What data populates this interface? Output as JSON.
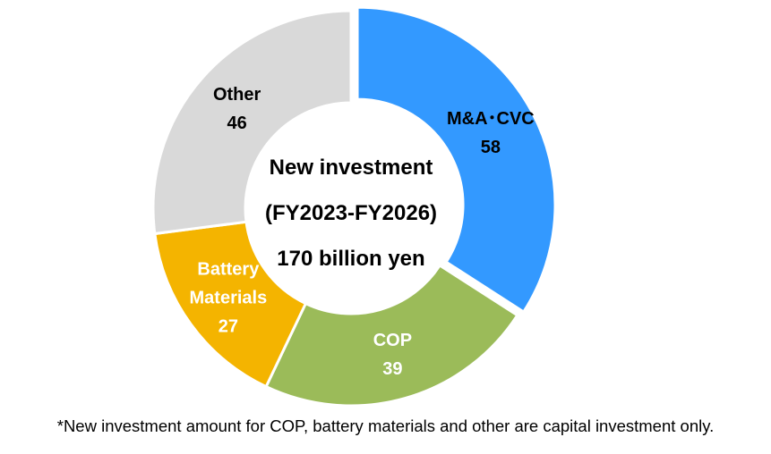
{
  "chart_data": {
    "type": "pie",
    "variant": "donut",
    "categories": [
      "M&A･CVC",
      "COP",
      "Battery Materials",
      "Other"
    ],
    "values": [
      58,
      39,
      27,
      46
    ],
    "colors": [
      "#3399ff",
      "#9bbb59",
      "#f4b400",
      "#d9d9d9"
    ],
    "label_colors": [
      "#000000",
      "#ffffff",
      "#ffffff",
      "#000000"
    ],
    "label_lines": [
      [
        "M&A･CVC",
        "58"
      ],
      [
        "COP",
        "39"
      ],
      [
        "Battery",
        "Materials",
        "27"
      ],
      [
        "Other",
        "46"
      ]
    ],
    "center_text": [
      "New investment",
      "(FY2023-FY2026)",
      "170 billion yen"
    ],
    "start_angle_deg": 0,
    "direction": "clockwise",
    "exploded_slice": "M&A･CVC"
  },
  "footnote": "*New investment amount for COP, battery materials and other are capital investment only."
}
